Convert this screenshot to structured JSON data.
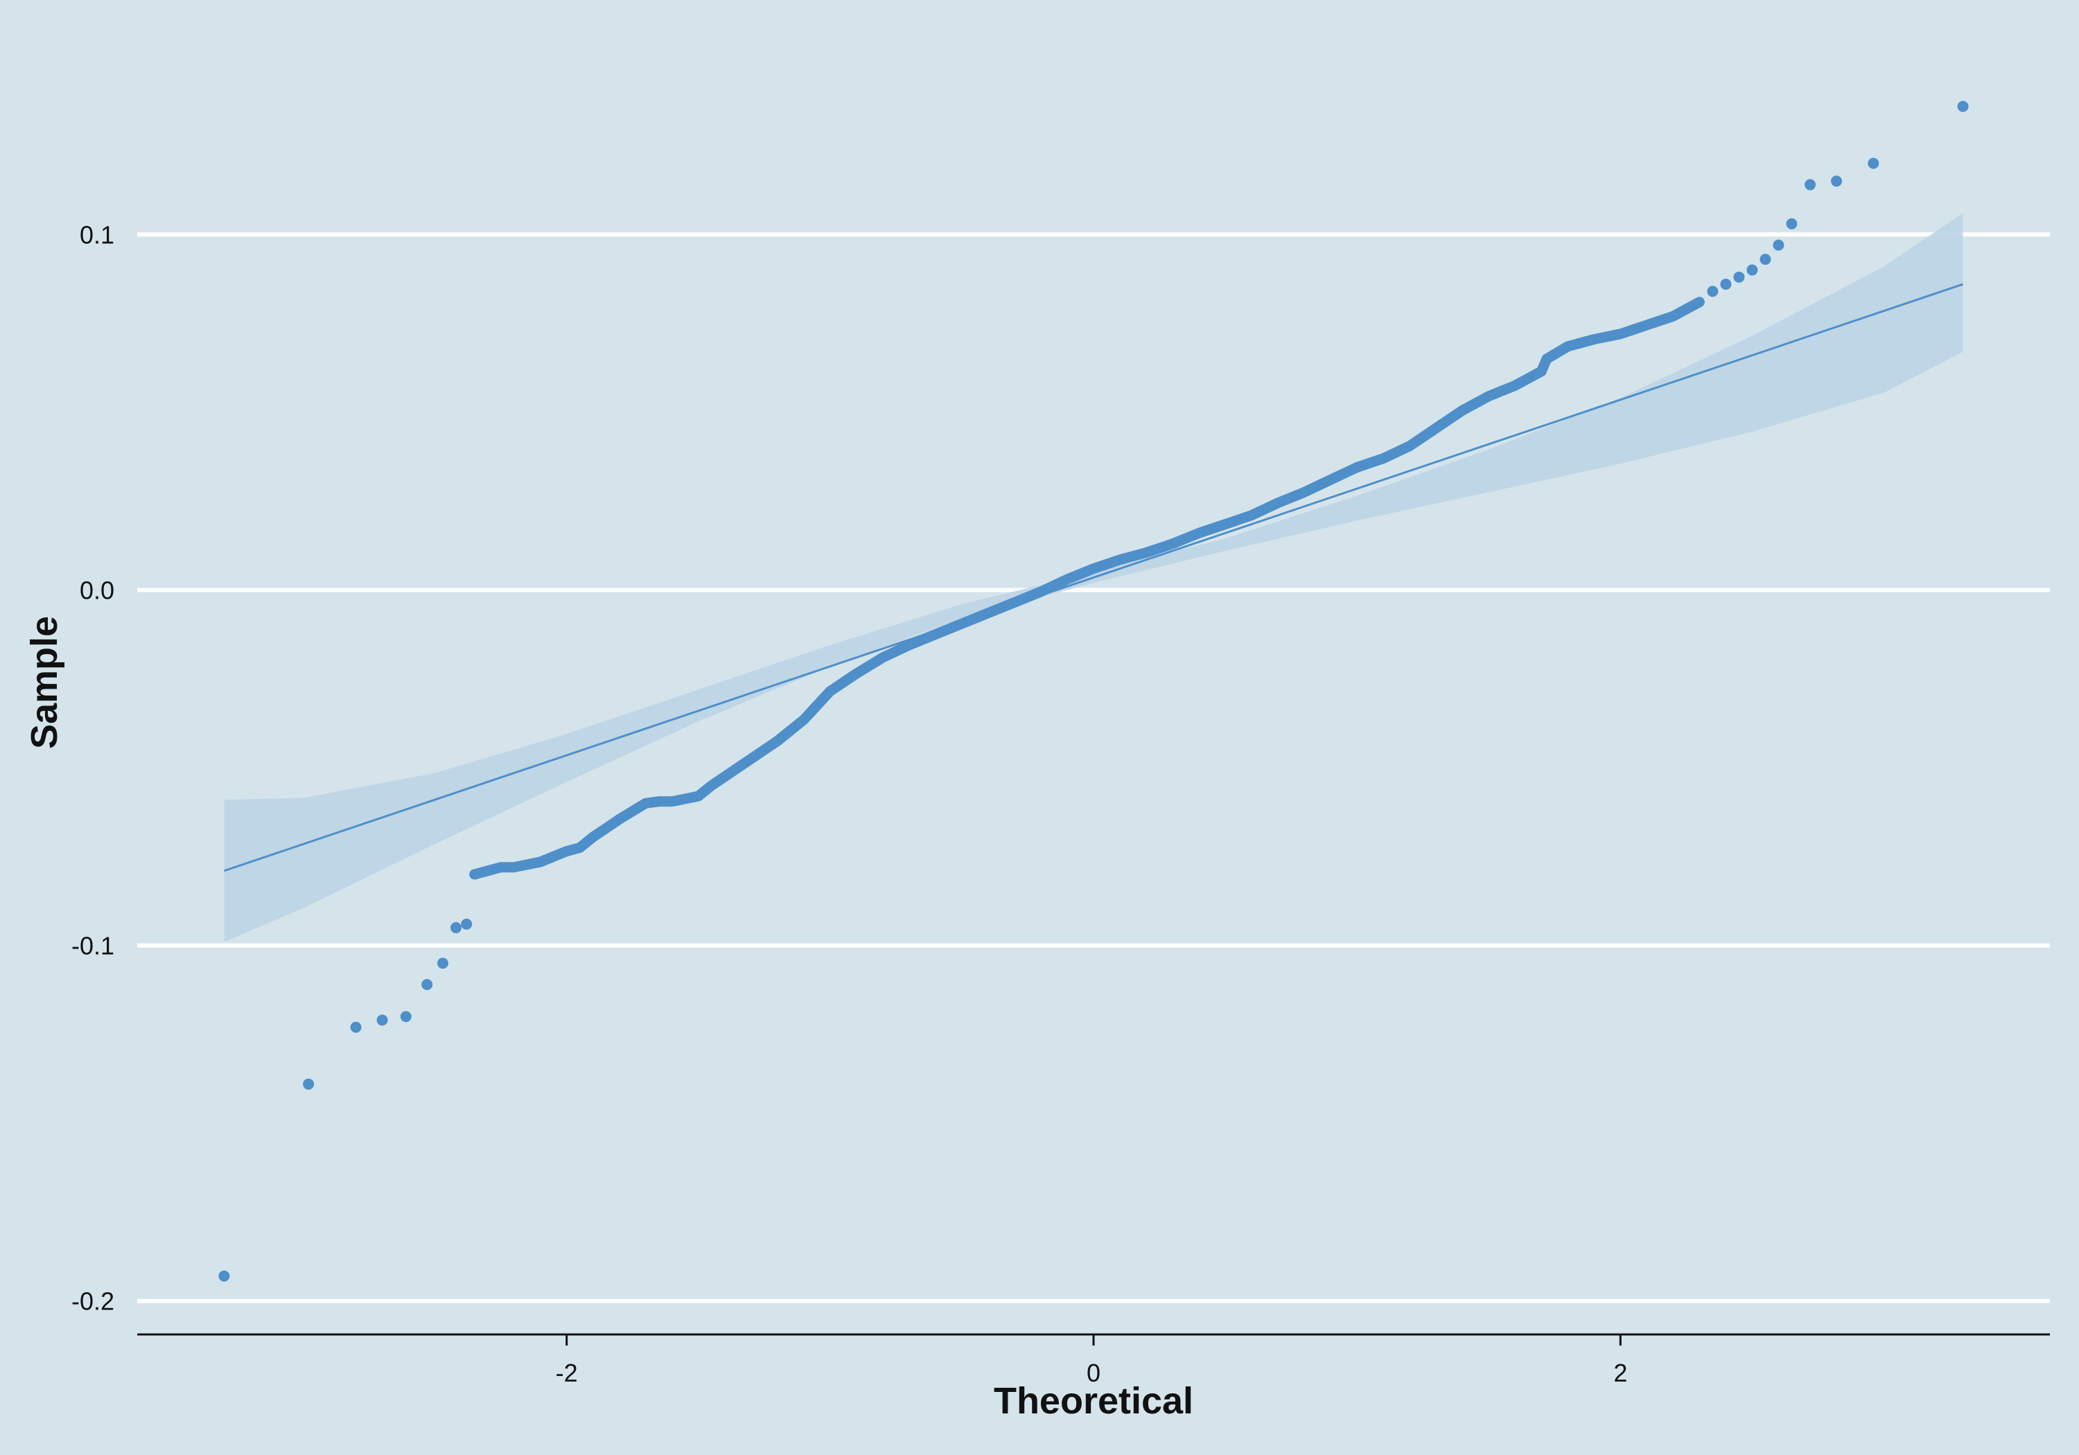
{
  "chart_data": {
    "type": "scatter",
    "subtype": "qq-plot",
    "title": "",
    "xlabel": "Theoretical",
    "ylabel": "Sample",
    "xlim": [
      -3.63,
      3.63
    ],
    "ylim": [
      -0.21,
      0.141
    ],
    "x_ticks": [
      {
        "value": -2,
        "label": "-2"
      },
      {
        "value": 0,
        "label": "0"
      },
      {
        "value": 2,
        "label": "2"
      }
    ],
    "y_ticks": [
      {
        "value": -0.2,
        "label": "-0.2"
      },
      {
        "value": -0.1,
        "label": "-0.1"
      },
      {
        "value": 0.0,
        "label": "0.0"
      },
      {
        "value": 0.1,
        "label": "0.1"
      }
    ],
    "grid": {
      "horizontal": true,
      "vertical": false
    },
    "legend": "none",
    "colors": {
      "background": "#d5e4eb",
      "points": "#4e8fca",
      "line": "#4e8fca",
      "band": "#bcd4e6",
      "grid": "#ffffff",
      "axis": "#111111"
    },
    "reference_line": {
      "x": [
        -3.3,
        3.3
      ],
      "y": [
        -0.079,
        0.086
      ]
    },
    "confidence_band": [
      {
        "x": -3.3,
        "lower": -0.099,
        "upper": -0.059
      },
      {
        "x": -3.0,
        "lower": -0.0895,
        "upper": -0.0585
      },
      {
        "x": -2.5,
        "lower": -0.0715,
        "upper": -0.0515
      },
      {
        "x": -2.0,
        "lower": -0.054,
        "upper": -0.0405
      },
      {
        "x": -1.5,
        "lower": -0.037,
        "upper": -0.028
      },
      {
        "x": -1.0,
        "lower": -0.0215,
        "upper": -0.0155
      },
      {
        "x": -0.5,
        "lower": -0.008,
        "upper": -0.004
      },
      {
        "x": 0.0,
        "lower": 0.002,
        "upper": 0.005
      },
      {
        "x": 0.5,
        "lower": 0.011,
        "upper": 0.0145
      },
      {
        "x": 1.0,
        "lower": 0.0195,
        "upper": 0.0265
      },
      {
        "x": 1.5,
        "lower": 0.0275,
        "upper": 0.0395
      },
      {
        "x": 2.0,
        "lower": 0.0355,
        "upper": 0.054
      },
      {
        "x": 2.5,
        "lower": 0.0445,
        "upper": 0.0715
      },
      {
        "x": 3.0,
        "lower": 0.0555,
        "upper": 0.091
      },
      {
        "x": 3.3,
        "lower": 0.067,
        "upper": 0.106
      }
    ],
    "qq_curve": {
      "name": "dense points",
      "x": [
        -2.35,
        -2.25,
        -2.2,
        -2.1,
        -2.0,
        -1.95,
        -1.9,
        -1.85,
        -1.8,
        -1.7,
        -1.65,
        -1.6,
        -1.5,
        -1.45,
        -1.4,
        -1.3,
        -1.2,
        -1.1,
        -1.0,
        -0.9,
        -0.8,
        -0.7,
        -0.6,
        -0.5,
        -0.4,
        -0.3,
        -0.2,
        -0.1,
        0.0,
        0.1,
        0.2,
        0.3,
        0.4,
        0.5,
        0.6,
        0.7,
        0.8,
        0.9,
        1.0,
        1.1,
        1.2,
        1.3,
        1.4,
        1.5,
        1.6,
        1.7,
        1.72,
        1.8,
        1.9,
        2.0,
        2.1,
        2.2,
        2.3
      ],
      "y": [
        -0.08,
        -0.078,
        -0.078,
        -0.0765,
        -0.0735,
        -0.0725,
        -0.0695,
        -0.067,
        -0.0645,
        -0.06,
        -0.0595,
        -0.0595,
        -0.058,
        -0.055,
        -0.0525,
        -0.0475,
        -0.0425,
        -0.0365,
        -0.0285,
        -0.0235,
        -0.019,
        -0.0155,
        -0.0125,
        -0.0095,
        -0.0065,
        -0.0035,
        -0.0005,
        0.003,
        0.006,
        0.0085,
        0.0105,
        0.013,
        0.016,
        0.0185,
        0.021,
        0.0245,
        0.0275,
        0.031,
        0.0345,
        0.037,
        0.0405,
        0.0455,
        0.0505,
        0.0545,
        0.0575,
        0.0615,
        0.065,
        0.0685,
        0.0705,
        0.072,
        0.0745,
        0.077,
        0.081
      ]
    },
    "tail_points": {
      "x": [
        -3.3,
        -2.98,
        -2.8,
        -2.7,
        -2.61,
        -2.53,
        -2.47,
        -2.42,
        -2.38,
        2.35,
        2.4,
        2.45,
        2.5,
        2.55,
        2.6,
        2.65,
        2.72,
        2.82,
        2.96,
        3.3
      ],
      "y": [
        -0.193,
        -0.139,
        -0.123,
        -0.121,
        -0.12,
        -0.111,
        -0.105,
        -0.095,
        -0.094,
        0.084,
        0.086,
        0.088,
        0.09,
        0.093,
        0.097,
        0.103,
        0.114,
        0.115,
        0.12,
        0.136
      ]
    }
  }
}
